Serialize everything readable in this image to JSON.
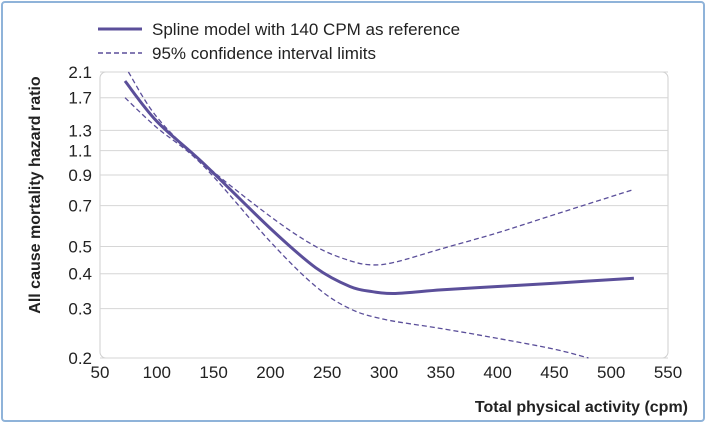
{
  "chart_data": {
    "type": "line",
    "xlabel": "Total physical activity (cpm)",
    "ylabel": "All cause mortality hazard ratio",
    "xlim": [
      50,
      550
    ],
    "ylim": [
      0.2,
      2.1
    ],
    "yscale": "log",
    "x_ticks": [
      "50",
      "100",
      "150",
      "200",
      "250",
      "300",
      "350",
      "400",
      "450",
      "500",
      "550"
    ],
    "y_ticks": [
      "0.2",
      "0.3",
      "0.4",
      "0.5",
      "0.7",
      "0.9",
      "1.1",
      "1.3",
      "1.7",
      "2.1"
    ],
    "grid": "horizontal",
    "legend_position": "top-left",
    "series": [
      {
        "name": "Spline model with 140 CPM as reference",
        "style": "solid",
        "color": "#5b4f9a",
        "x": [
          72,
          100,
          140,
          200,
          240,
          270,
          290,
          310,
          350,
          400,
          450,
          520
        ],
        "y": [
          1.95,
          1.4,
          1.0,
          0.58,
          0.42,
          0.36,
          0.345,
          0.34,
          0.35,
          0.36,
          0.37,
          0.385
        ]
      },
      {
        "name": "95% confidence interval limits",
        "style": "dashed",
        "color": "#5b4f9a",
        "x": [
          75,
          100,
          140,
          200,
          240,
          270,
          290,
          310,
          350,
          400,
          450,
          520
        ],
        "y": [
          2.1,
          1.45,
          1.0,
          0.64,
          0.5,
          0.445,
          0.43,
          0.44,
          0.49,
          0.56,
          0.65,
          0.8
        ]
      },
      {
        "name": "",
        "style": "dashed",
        "color": "#5b4f9a",
        "x": [
          72,
          100,
          140,
          200,
          240,
          270,
          300,
          350,
          400,
          450,
          480
        ],
        "y": [
          1.7,
          1.33,
          0.98,
          0.52,
          0.36,
          0.3,
          0.275,
          0.255,
          0.235,
          0.215,
          0.2
        ]
      }
    ]
  }
}
